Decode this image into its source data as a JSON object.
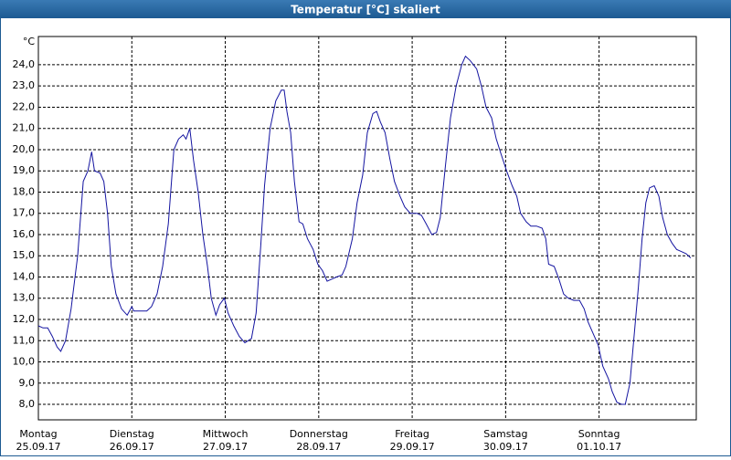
{
  "chart_data": {
    "type": "line",
    "title": "Temperatur [°C] skaliert",
    "y_unit": "°C",
    "color": "#1414a0",
    "grid": true,
    "xlim": [
      0,
      7.04
    ],
    "ylim": [
      7.27,
      25.33
    ],
    "xticks": [
      {
        "value": 0,
        "label": "Montag"
      },
      {
        "value": 1,
        "label": "Dienstag"
      },
      {
        "value": 2,
        "label": "Mittwoch"
      },
      {
        "value": 3,
        "label": "Donnerstag"
      },
      {
        "value": 4,
        "label": "Freitag"
      },
      {
        "value": 5,
        "label": "Samstag"
      },
      {
        "value": 6,
        "label": "Sonntag"
      }
    ],
    "xtick_dates": [
      "25.09.17",
      "26.09.17",
      "27.09.17",
      "28.09.17",
      "29.09.17",
      "30.09.17",
      "01.10.17"
    ],
    "yticks": [
      {
        "value": 8,
        "label": "8,0"
      },
      {
        "value": 9,
        "label": "9,0"
      },
      {
        "value": 10,
        "label": "10,0"
      },
      {
        "value": 11,
        "label": "11,0"
      },
      {
        "value": 12,
        "label": "12,0"
      },
      {
        "value": 13,
        "label": "13,0"
      },
      {
        "value": 14,
        "label": "14,0"
      },
      {
        "value": 15,
        "label": "15,0"
      },
      {
        "value": 16,
        "label": "16,0"
      },
      {
        "value": 17,
        "label": "17,0"
      },
      {
        "value": 18,
        "label": "18,0"
      },
      {
        "value": 19,
        "label": "19,0"
      },
      {
        "value": 20,
        "label": "20,0"
      },
      {
        "value": 21,
        "label": "21,0"
      },
      {
        "value": 22,
        "label": "22,0"
      },
      {
        "value": 23,
        "label": "23,0"
      },
      {
        "value": 24,
        "label": "24,0"
      }
    ],
    "x": [
      0.0,
      0.05,
      0.1,
      0.15,
      0.2,
      0.24,
      0.29,
      0.35,
      0.42,
      0.48,
      0.53,
      0.57,
      0.6,
      0.66,
      0.7,
      0.74,
      0.78,
      0.83,
      0.89,
      0.95,
      1.0,
      1.02,
      1.08,
      1.16,
      1.21,
      1.27,
      1.33,
      1.39,
      1.45,
      1.5,
      1.55,
      1.58,
      1.62,
      1.66,
      1.71,
      1.76,
      1.81,
      1.85,
      1.9,
      1.94,
      1.99,
      2.03,
      2.09,
      2.15,
      2.21,
      2.28,
      2.33,
      2.38,
      2.42,
      2.48,
      2.54,
      2.6,
      2.63,
      2.66,
      2.7,
      2.74,
      2.79,
      2.83,
      2.88,
      2.94,
      2.99,
      3.04,
      3.09,
      3.14,
      3.19,
      3.25,
      3.29,
      3.36,
      3.41,
      3.47,
      3.52,
      3.58,
      3.62,
      3.66,
      3.71,
      3.76,
      3.81,
      3.87,
      3.92,
      3.98,
      4.05,
      4.1,
      4.15,
      4.21,
      4.26,
      4.3,
      4.35,
      4.41,
      4.47,
      4.53,
      4.57,
      4.62,
      4.69,
      4.74,
      4.79,
      4.85,
      4.9,
      4.95,
      5.01,
      5.07,
      5.12,
      5.16,
      5.22,
      5.27,
      5.33,
      5.39,
      5.43,
      5.46,
      5.52,
      5.57,
      5.62,
      5.67,
      5.73,
      5.79,
      5.84,
      5.88,
      5.94,
      5.99,
      6.04,
      6.1,
      6.14,
      6.19,
      6.24,
      6.28,
      6.33,
      6.37,
      6.42,
      6.46,
      6.5,
      6.54,
      6.59,
      6.64,
      6.68,
      6.73,
      6.78,
      6.83,
      6.88,
      6.93,
      6.98
    ],
    "values": [
      11.7,
      11.6,
      11.6,
      11.2,
      10.7,
      10.5,
      11.0,
      12.5,
      15.0,
      18.5,
      19.0,
      19.9,
      19.0,
      18.9,
      18.5,
      17.0,
      14.5,
      13.2,
      12.5,
      12.2,
      12.6,
      12.4,
      12.4,
      12.4,
      12.6,
      13.2,
      14.5,
      16.5,
      20.0,
      20.5,
      20.7,
      20.5,
      21.0,
      19.5,
      18.0,
      16.0,
      14.5,
      13.0,
      12.2,
      12.7,
      13.0,
      12.3,
      11.7,
      11.2,
      10.9,
      11.1,
      12.3,
      15.5,
      18.3,
      21.0,
      22.3,
      22.8,
      22.8,
      21.8,
      20.8,
      18.5,
      16.6,
      16.5,
      15.8,
      15.3,
      14.6,
      14.3,
      13.8,
      13.9,
      14.0,
      14.1,
      14.5,
      15.8,
      17.5,
      18.8,
      20.8,
      21.7,
      21.8,
      21.3,
      20.8,
      19.6,
      18.5,
      17.8,
      17.3,
      17.0,
      17.0,
      16.9,
      16.5,
      16.0,
      16.1,
      16.8,
      19.0,
      21.5,
      23.0,
      24.0,
      24.4,
      24.2,
      23.8,
      23.0,
      22.0,
      21.5,
      20.5,
      19.8,
      19.0,
      18.3,
      17.8,
      17.0,
      16.6,
      16.4,
      16.4,
      16.3,
      15.8,
      14.6,
      14.5,
      13.9,
      13.2,
      13.0,
      12.9,
      12.9,
      12.5,
      11.9,
      11.3,
      10.8,
      9.8,
      9.2,
      8.6,
      8.1,
      8.0,
      8.0,
      9.0,
      11.0,
      13.5,
      15.8,
      17.5,
      18.2,
      18.3,
      17.8,
      16.8,
      16.0,
      15.6,
      15.3,
      15.2,
      15.1,
      14.9
    ]
  }
}
